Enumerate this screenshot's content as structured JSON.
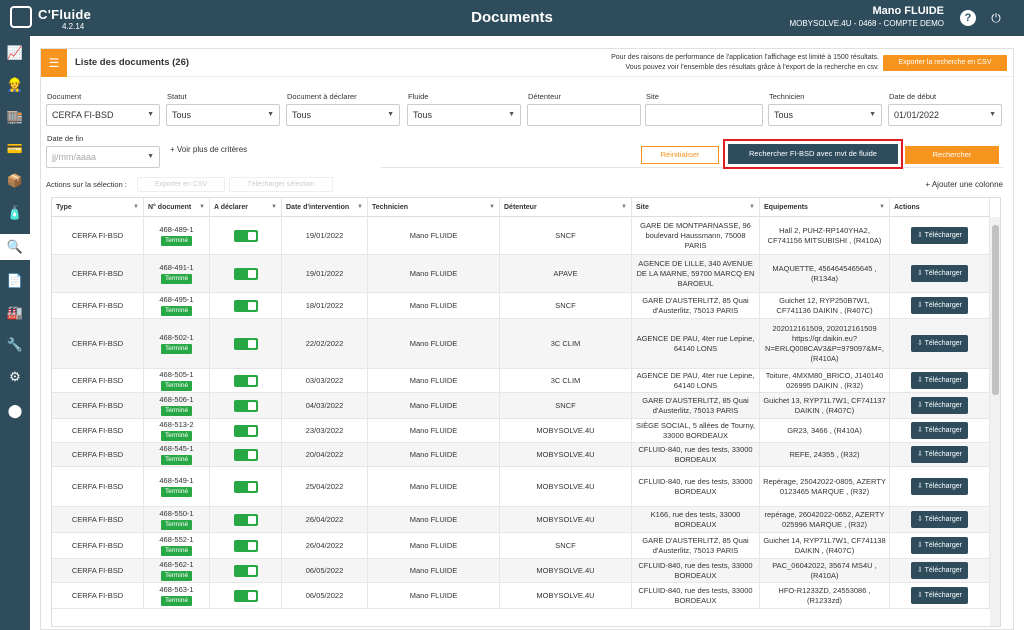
{
  "app": {
    "name": "C'Fluide",
    "version": "4.2.14",
    "title": "Documents"
  },
  "user": {
    "name": "Mano FLUIDE",
    "company": "MOBYSOLVE.4U - 0468 - COMPTE DEMO"
  },
  "topbar_icons": {
    "help": "?",
    "power": "⏻"
  },
  "sidebar": [
    {
      "name": "dashboard-icon",
      "glyph": "📈"
    },
    {
      "name": "technician-icon",
      "glyph": "👷"
    },
    {
      "name": "store-icon",
      "glyph": "🏬"
    },
    {
      "name": "wallet-icon",
      "glyph": "💳"
    },
    {
      "name": "box-icon",
      "glyph": "📦"
    },
    {
      "name": "bottle-icon",
      "glyph": "🧴"
    },
    {
      "name": "search-docs-icon",
      "glyph": "🔍"
    },
    {
      "name": "document-icon",
      "glyph": "📄"
    },
    {
      "name": "factory-icon",
      "glyph": "🏭"
    },
    {
      "name": "wrench-icon",
      "glyph": "🔧"
    },
    {
      "name": "settings-icon",
      "glyph": "⚙"
    },
    {
      "name": "badge-icon",
      "glyph": "⬤"
    }
  ],
  "panel": {
    "title": "Liste des documents (26)",
    "perf_line1": "Pour des raisons de performance de l'application l'affichage est limité à 1500 résultats.",
    "perf_line2": "Vous pouvez voir l'ensemble des résultats grâce à l'export de la recherche en csv.",
    "export_label": "Exporter la recherche en CSV"
  },
  "filters": {
    "document": {
      "label": "Document",
      "value": "CERFA FI-BSD"
    },
    "statut": {
      "label": "Statut",
      "value": "Tous"
    },
    "doc_declarer": {
      "label": "Document à déclarer",
      "value": "Tous"
    },
    "fluide": {
      "label": "Fluide",
      "value": "Tous"
    },
    "detenteur": {
      "label": "Détenteur",
      "value": ""
    },
    "site": {
      "label": "Site",
      "value": ""
    },
    "technicien": {
      "label": "Technicien",
      "value": "Tous"
    },
    "date_debut": {
      "label": "Date de début",
      "value": "01/01/2022"
    },
    "date_fin": {
      "label": "Date de fin",
      "placeholder": "jj/mm/aaaa"
    },
    "more": "+ Voir plus de critères",
    "reset": "Réinitialiser",
    "fi_search": "Rechercher FI-BSD avec mvt de fluide",
    "search": "Rechercher"
  },
  "actions": {
    "label": "Actions sur la sélection :",
    "export_csv": "Exporter en CSV",
    "download_selected": "Télécharger sélection",
    "add_column": "+ Ajouter une colonne"
  },
  "columns": [
    "Type",
    "N° document",
    "A déclarer",
    "Date d'intervention",
    "Technicien",
    "Détenteur",
    "Site",
    "Equipements",
    "Actions"
  ],
  "status_label": "Terminé",
  "download_label": "Télécharger",
  "rows": [
    {
      "type": "CERFA FI-BSD",
      "num": "468-489-1",
      "date": "19/01/2022",
      "tech": "Mano FLUIDE",
      "det": "SNCF",
      "site": "GARE DE MONTPARNASSE, 96 boulevard Haussmann, 75008 PARIS",
      "eq": "Hall 2, PUHZ-RP140YHA2, CF741156 MITSUBISHI , (R410A)"
    },
    {
      "type": "CERFA FI-BSD",
      "num": "468-491-1",
      "date": "19/01/2022",
      "tech": "Mano FLUIDE",
      "det": "APAVE",
      "site": "AGENCE DE LILLE, 340 AVENUE DE LA MARNE, 59700 MARCQ EN BAROEUL",
      "eq": "MAQUETTE, 4564645465645 , (R134a)"
    },
    {
      "type": "CERFA FI-BSD",
      "num": "468-495-1",
      "date": "18/01/2022",
      "tech": "Mano FLUIDE",
      "det": "SNCF",
      "site": "GARE D'AUSTERLITZ, 85 Quai d'Austerlitz, 75013 PARIS",
      "eq": "Guichet 12, RYP250B7W1, CF741136 DAIKIN , (R407C)"
    },
    {
      "type": "CERFA FI-BSD",
      "num": "468-502-1",
      "date": "22/02/2022",
      "tech": "Mano FLUIDE",
      "det": "3C CLIM",
      "site": "AGENCE DE PAU, 4ter rue Lepine, 64140 LONS",
      "eq": "202012161509, 202012161509 https://qr.daikin.eu?N=ERLQ008CAV3&P=979097&M=, (R410A)"
    },
    {
      "type": "CERFA FI-BSD",
      "num": "468-505-1",
      "date": "03/03/2022",
      "tech": "Mano FLUIDE",
      "det": "3C CLIM",
      "site": "AGENCE DE PAU, 4ter rue Lepine, 64140 LONS",
      "eq": "Toiture, 4MXM80_BRICO, J140140 026995 DAIKIN , (R32)"
    },
    {
      "type": "CERFA FI-BSD",
      "num": "468-506-1",
      "date": "04/03/2022",
      "tech": "Mano FLUIDE",
      "det": "SNCF",
      "site": "GARE D'AUSTERLITZ, 85 Quai d'Austerlitz, 75013 PARIS",
      "eq": "Guichet 13, RYP71L7W1, CF741137 DAIKIN , (R407C)"
    },
    {
      "type": "CERFA FI-BSD",
      "num": "468-513-2",
      "date": "23/03/2022",
      "tech": "Mano FLUIDE",
      "det": "MOBYSOLVE.4U",
      "site": "SIÈGE SOCIAL, 5 allées de Tourny, 33000 BORDEAUX",
      "eq": "GR23, 3466 , (R410A)"
    },
    {
      "type": "CERFA FI-BSD",
      "num": "468-545-1",
      "date": "20/04/2022",
      "tech": "Mano FLUIDE",
      "det": "MOBYSOLVE.4U",
      "site": "CFLUID-840, rue des tests, 33000 BORDEAUX",
      "eq": "REFE, 24355 , (R32)"
    },
    {
      "type": "CERFA FI-BSD",
      "num": "468-549-1",
      "date": "25/04/2022",
      "tech": "Mano FLUIDE",
      "det": "MOBYSOLVE.4U",
      "site": "CFLUID-840, rue des tests, 33000 BORDEAUX",
      "eq": "Repérage, 25042022-0805, AZERTY 0123465 MARQUE , (R32)"
    },
    {
      "type": "CERFA FI-BSD",
      "num": "468-550-1",
      "date": "26/04/2022",
      "tech": "Mano FLUIDE",
      "det": "MOBYSOLVE.4U",
      "site": "K166, rue des tests, 33000 BORDEAUX",
      "eq": "repérage, 26042022-0652, AZERTY 025996 MARQUE , (R32)"
    },
    {
      "type": "CERFA FI-BSD",
      "num": "468-552-1",
      "date": "26/04/2022",
      "tech": "Mano FLUIDE",
      "det": "SNCF",
      "site": "GARE D'AUSTERLITZ, 85 Quai d'Austerlitz, 75013 PARIS",
      "eq": "Guichet 14, RYP71L7W1, CF741138 DAIKIN , (R407C)"
    },
    {
      "type": "CERFA FI-BSD",
      "num": "468-562-1",
      "date": "06/05/2022",
      "tech": "Mano FLUIDE",
      "det": "MOBYSOLVE.4U",
      "site": "CFLUID-840, rue des tests, 33000 BORDEAUX",
      "eq": "PAC_06042022, 35674 MS4U , (R410A)"
    },
    {
      "type": "CERFA FI-BSD",
      "num": "468-563-1",
      "date": "06/05/2022",
      "tech": "Mano FLUIDE",
      "det": "MOBYSOLVE.4U",
      "site": "CFLUID-840, rue des tests, 33000 BORDEAUX",
      "eq": "HFO-R1233ZD, 24553086 , (R1233zd)"
    }
  ]
}
